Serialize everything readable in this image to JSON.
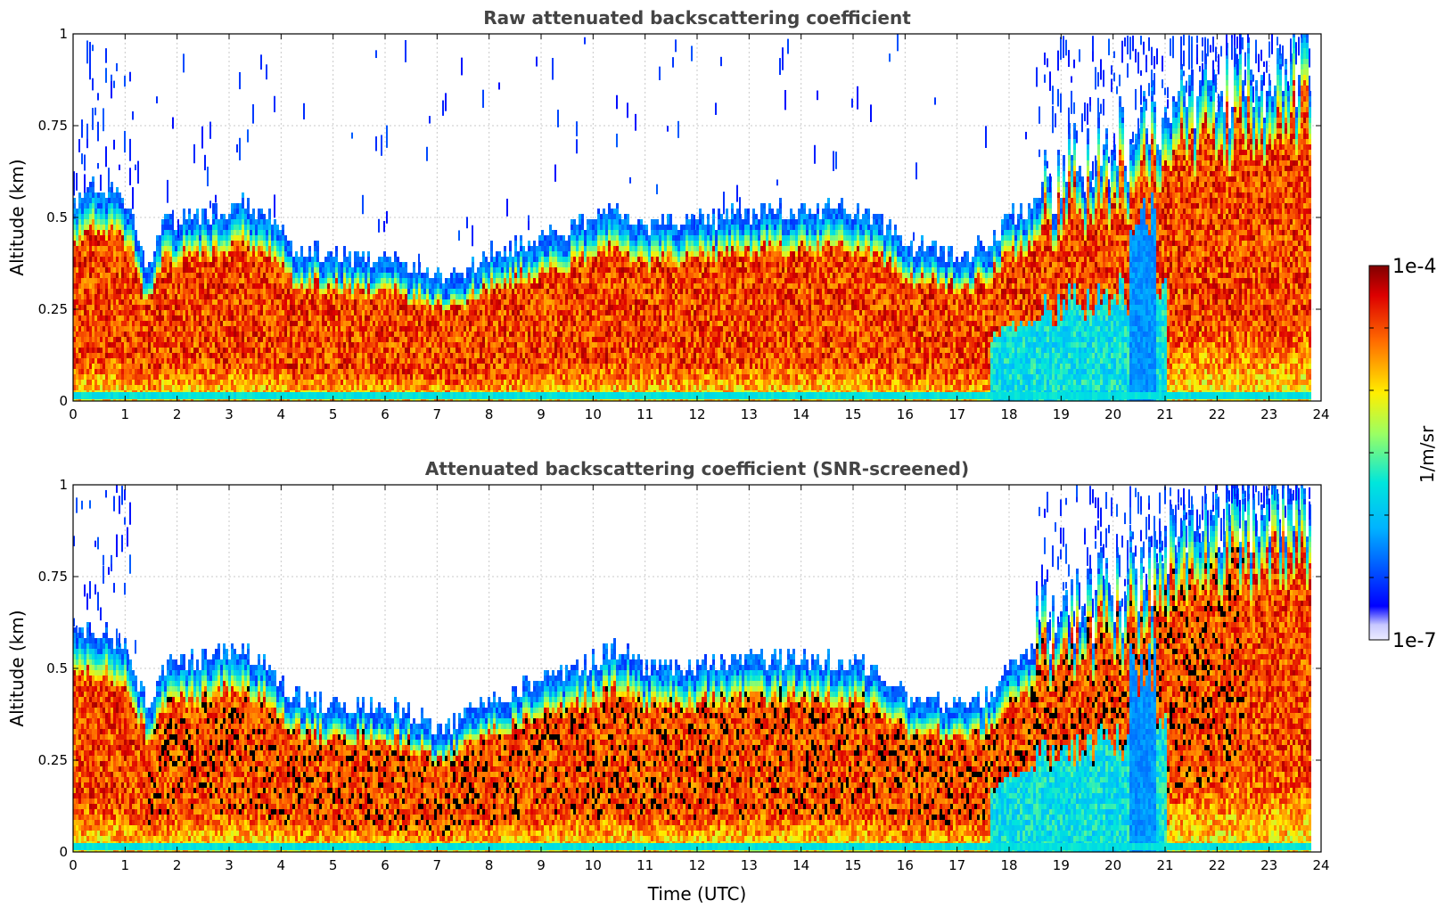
{
  "chart_data": [
    {
      "type": "heatmap",
      "title": "Raw attenuated backscattering coefficient",
      "xlabel": "",
      "ylabel": "Altitude (km)",
      "xlim": [
        0,
        24
      ],
      "ylim": [
        0,
        1
      ],
      "xticks": [
        "0",
        "1",
        "2",
        "3",
        "4",
        "5",
        "6",
        "7",
        "8",
        "9",
        "10",
        "11",
        "12",
        "13",
        "14",
        "15",
        "16",
        "17",
        "18",
        "19",
        "20",
        "21",
        "22",
        "23",
        "24"
      ],
      "yticks": [
        "0",
        "0.25",
        "0.5",
        "0.75",
        "1"
      ],
      "grid": true,
      "screened": false,
      "data_end_hour": 23.8,
      "layer_top_km": [
        [
          0,
          0.5
        ],
        [
          0.5,
          0.55
        ],
        [
          1.0,
          0.5
        ],
        [
          1.4,
          0.32
        ],
        [
          1.7,
          0.44
        ],
        [
          2.2,
          0.46
        ],
        [
          2.8,
          0.48
        ],
        [
          3.3,
          0.5
        ],
        [
          3.8,
          0.46
        ],
        [
          4.2,
          0.38
        ],
        [
          5.0,
          0.36
        ],
        [
          5.8,
          0.34
        ],
        [
          6.5,
          0.33
        ],
        [
          7.0,
          0.3
        ],
        [
          7.5,
          0.31
        ],
        [
          8.0,
          0.36
        ],
        [
          8.8,
          0.4
        ],
        [
          9.3,
          0.42
        ],
        [
          10.0,
          0.46
        ],
        [
          10.5,
          0.48
        ],
        [
          11.0,
          0.44
        ],
        [
          12.0,
          0.45
        ],
        [
          13.0,
          0.47
        ],
        [
          14.0,
          0.48
        ],
        [
          15.0,
          0.48
        ],
        [
          15.6,
          0.44
        ],
        [
          16.0,
          0.38
        ],
        [
          17.0,
          0.36
        ],
        [
          17.5,
          0.38
        ],
        [
          18.0,
          0.46
        ],
        [
          18.5,
          0.5
        ],
        [
          19.0,
          0.54
        ],
        [
          19.5,
          0.58
        ],
        [
          20.0,
          0.62
        ],
        [
          20.5,
          0.65
        ],
        [
          21.0,
          0.72
        ],
        [
          22.0,
          0.78
        ],
        [
          23.0,
          0.82
        ],
        [
          23.8,
          0.85
        ]
      ],
      "colorbar": {
        "label": "1/m/sr",
        "min_label": "1e-7",
        "max_label": "1e-4",
        "scale": "log"
      }
    },
    {
      "type": "heatmap",
      "title": "Attenuated backscattering coefficient (SNR-screened)",
      "xlabel": "Time (UTC)",
      "ylabel": "Altitude (km)",
      "xlim": [
        0,
        24
      ],
      "ylim": [
        0,
        1
      ],
      "xticks": [
        "0",
        "1",
        "2",
        "3",
        "4",
        "5",
        "6",
        "7",
        "8",
        "9",
        "10",
        "11",
        "12",
        "13",
        "14",
        "15",
        "16",
        "17",
        "18",
        "19",
        "20",
        "21",
        "22",
        "23",
        "24"
      ],
      "yticks": [
        "0",
        "0.25",
        "0.5",
        "0.75",
        "1"
      ],
      "grid": true,
      "screened": true,
      "data_end_hour": 23.8,
      "layer_top_km": [
        [
          0,
          0.55
        ],
        [
          0.5,
          0.56
        ],
        [
          1.0,
          0.52
        ],
        [
          1.4,
          0.36
        ],
        [
          1.7,
          0.46
        ],
        [
          2.2,
          0.48
        ],
        [
          2.8,
          0.5
        ],
        [
          3.3,
          0.5
        ],
        [
          3.8,
          0.46
        ],
        [
          4.2,
          0.38
        ],
        [
          5.0,
          0.36
        ],
        [
          5.8,
          0.36
        ],
        [
          6.5,
          0.34
        ],
        [
          7.0,
          0.3
        ],
        [
          7.5,
          0.32
        ],
        [
          8.0,
          0.38
        ],
        [
          8.8,
          0.42
        ],
        [
          9.3,
          0.44
        ],
        [
          10.0,
          0.48
        ],
        [
          10.5,
          0.52
        ],
        [
          11.0,
          0.46
        ],
        [
          12.0,
          0.47
        ],
        [
          13.0,
          0.48
        ],
        [
          14.0,
          0.49
        ],
        [
          15.0,
          0.48
        ],
        [
          15.6,
          0.44
        ],
        [
          16.0,
          0.38
        ],
        [
          17.0,
          0.36
        ],
        [
          17.5,
          0.38
        ],
        [
          18.0,
          0.46
        ],
        [
          18.5,
          0.52
        ],
        [
          19.0,
          0.56
        ],
        [
          19.5,
          0.6
        ],
        [
          20.0,
          0.64
        ],
        [
          20.5,
          0.68
        ],
        [
          21.0,
          0.75
        ],
        [
          22.0,
          0.82
        ],
        [
          23.0,
          0.86
        ],
        [
          23.8,
          0.88
        ]
      ],
      "colorbar": {
        "label": "1/m/sr",
        "min_label": "1e-7",
        "max_label": "1e-4",
        "scale": "log"
      }
    }
  ],
  "colorbar": {
    "label": "1/m/sr",
    "max_label": "1e-4",
    "min_label": "1e-7",
    "colormap": "jet"
  }
}
